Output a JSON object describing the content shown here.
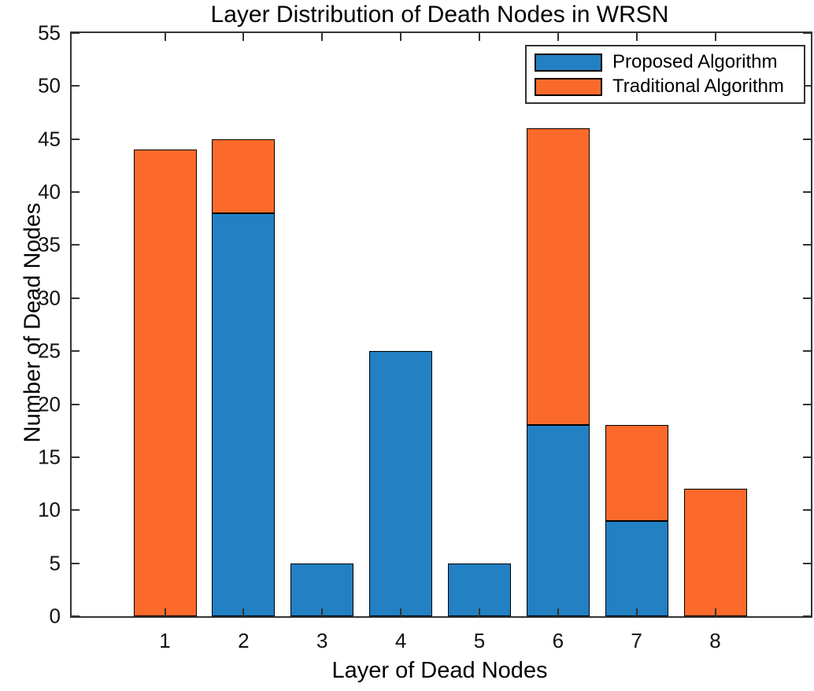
{
  "chart_data": {
    "type": "bar",
    "stacked": true,
    "title": "Layer Distribution of Death Nodes in WRSN",
    "xlabel": "Layer of Dead Nodes",
    "ylabel": "Number of Dead Nodes",
    "categories": [
      "1",
      "2",
      "3",
      "4",
      "5",
      "6",
      "7",
      "8"
    ],
    "series": [
      {
        "name": "Proposed Algorithm",
        "color": "#2280C3",
        "values": [
          0,
          38,
          5,
          25,
          5,
          18,
          9,
          0
        ]
      },
      {
        "name": "Traditional Algorithm",
        "color": "#FC6A2B",
        "values": [
          44,
          7,
          0,
          0,
          0,
          28,
          9,
          12
        ]
      }
    ],
    "ylim": [
      0,
      55
    ],
    "yticks": [
      0,
      5,
      10,
      15,
      20,
      25,
      30,
      35,
      40,
      45,
      50,
      55
    ],
    "grid": false,
    "legend_position": "top-right",
    "colors": {
      "axis": "#333333",
      "bar_edge": "#000000",
      "text": "#000000",
      "background": "#ffffff"
    }
  }
}
